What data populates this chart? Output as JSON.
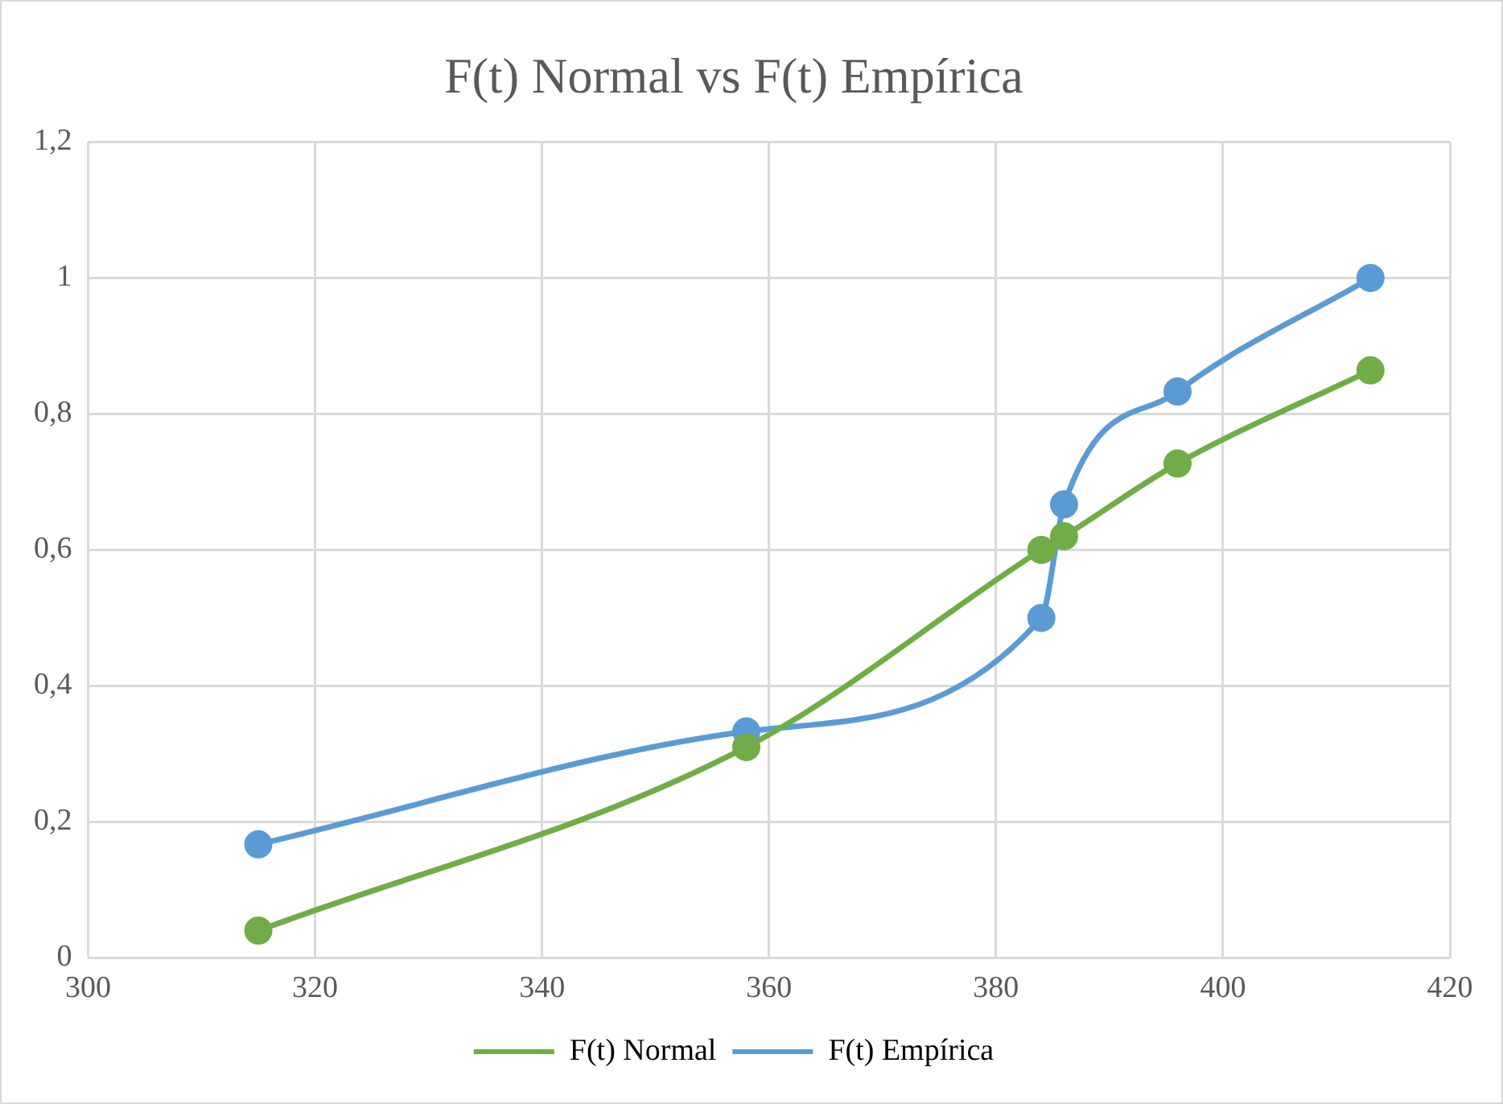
{
  "chart_data": {
    "type": "line",
    "title": "F(t) Normal vs F(t) Empírica",
    "x": [
      315,
      358,
      384,
      386,
      396,
      413
    ],
    "series": [
      {
        "name": "F(t) Normal",
        "color": "#70ad47",
        "values": [
          0.04,
          0.31,
          0.6,
          0.62,
          0.727,
          0.864
        ]
      },
      {
        "name": "F(t) Empírica",
        "color": "#5b9bd5",
        "values": [
          0.167,
          0.333,
          0.5,
          0.667,
          0.833,
          1
        ]
      }
    ],
    "xlim": [
      300,
      420
    ],
    "xticks": [
      300,
      320,
      340,
      360,
      380,
      400,
      420
    ],
    "ylim": [
      0,
      1.2
    ],
    "yticks": [
      0,
      {
        "value": 0.2,
        "label": "0,2"
      },
      {
        "value": 0.4,
        "label": "0,4"
      },
      {
        "value": 0.6,
        "label": "0,6"
      },
      {
        "value": 0.8,
        "label": "0,8"
      },
      1,
      {
        "value": 1.2,
        "label": "1,2"
      }
    ],
    "grid": true,
    "legend": "bottom",
    "marker": "circle",
    "line_style": "solid"
  }
}
